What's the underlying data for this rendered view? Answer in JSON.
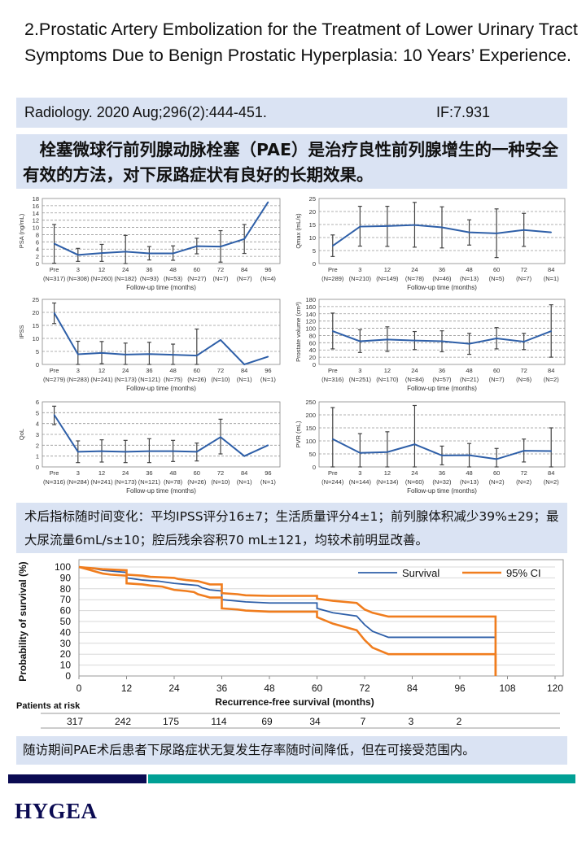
{
  "title": "2.Prostatic Artery Embolization for the Treatment of Lower Urinary Tract Symptoms Due to Benign Prostatic Hyperplasia: 10 Years’ Experience.",
  "citation": {
    "journal": "Radiology. 2020 Aug;296(2):444-451.",
    "impact_factor": "IF:7.931"
  },
  "summary": "　栓塞微球行前列腺动脉栓塞（PAE）是治疗良性前列腺增生的一种安全有效的方法，对下尿路症状有良好的长期效果。",
  "results_text": "术后指标随时间变化：平均IPSS评分16±7；生活质量评分4±1；前列腺体积减少39%±29；最大尿流量6mL/s±10；腔后残余容积70 mL±121，均较术前明显改善。",
  "conclusion_text": "随访期间PAE术后患者下尿路症状无复发生存率随时间降低，但在可接受范围内。",
  "logo": "HYGEA",
  "colors": {
    "band": "#dae3f3",
    "line": "#2e5fa8",
    "ci": "#f07d1e",
    "navy": "#0b0b52",
    "teal": "#00a095"
  },
  "chart_data": [
    {
      "type": "line",
      "ylabel": "PSA (ng/mL)",
      "xlabel": "Follow-up time (months)",
      "ylim": [
        0,
        18
      ],
      "ystep": 2,
      "grid": true,
      "categories": [
        "Pre",
        "3",
        "12",
        "24",
        "36",
        "48",
        "60",
        "72",
        "84",
        "96"
      ],
      "n": [
        "(N=317)",
        "(N=308)",
        "(N=260)",
        "(N=182)",
        "(N=93)",
        "(N=53)",
        "(N=27)",
        "(N=7)",
        "(N=7)",
        "(N=4)"
      ],
      "values": [
        5.5,
        2.4,
        2.9,
        3.3,
        2.8,
        2.8,
        4.8,
        4.7,
        6.8,
        17
      ],
      "error": [
        [
          0.1,
          10.8
        ],
        [
          0.6,
          4.2
        ],
        [
          0.6,
          5.3
        ],
        [
          0,
          7.8
        ],
        [
          1,
          4.7
        ],
        [
          0.9,
          4.9
        ],
        [
          2.7,
          7
        ],
        [
          0.4,
          9.1
        ],
        [
          2.8,
          10.8
        ],
        null
      ]
    },
    {
      "type": "line",
      "ylabel": "Qmax (mL/s)",
      "xlabel": "Follow-up time (months)",
      "ylim": [
        0,
        25
      ],
      "ystep": 5,
      "grid": true,
      "categories": [
        "Pre",
        "3",
        "12",
        "24",
        "36",
        "48",
        "60",
        "72",
        "84"
      ],
      "n": [
        "(N=289)",
        "(N=210)",
        "(N=149)",
        "(N=78)",
        "(N=46)",
        "(N=13)",
        "(N=5)",
        "(N=7)",
        "(N=1)"
      ],
      "values": [
        6.8,
        14.2,
        14.4,
        14.8,
        13.9,
        12,
        11.6,
        12.9,
        12
      ],
      "error": [
        [
          2.7,
          11
        ],
        [
          6.7,
          22
        ],
        [
          6.6,
          22
        ],
        [
          6.3,
          23.5
        ],
        [
          6,
          21.8
        ],
        [
          7.1,
          16.8
        ],
        [
          2.3,
          21
        ],
        [
          6.6,
          19.3
        ],
        null
      ]
    },
    {
      "type": "line",
      "ylabel": "IPSS",
      "xlabel": "Follow-up time (months)",
      "ylim": [
        0,
        25
      ],
      "ystep": 5,
      "grid": true,
      "categories": [
        "Pre",
        "3",
        "12",
        "24",
        "36",
        "48",
        "60",
        "72",
        "84",
        "96"
      ],
      "n": [
        "(N=279)",
        "(N=283)",
        "(N=241)",
        "(N=173)",
        "(N=121)",
        "(N=75)",
        "(N=26)",
        "(N=10)",
        "(N=1)",
        "(N=1)"
      ],
      "values": [
        19.8,
        3.9,
        4.4,
        3.8,
        4.0,
        3.7,
        3.4,
        9.4,
        0,
        3
      ],
      "error": [
        [
          15.7,
          23.6
        ],
        [
          0,
          8.9
        ],
        [
          0.3,
          8.8
        ],
        [
          0,
          8.2
        ],
        [
          0,
          8.5
        ],
        [
          0,
          7.8
        ],
        [
          0,
          13.6
        ],
        null,
        null,
        null
      ]
    },
    {
      "type": "line",
      "ylabel": "Prostate volume (cm³)",
      "xlabel": "Follow-up time (months)",
      "ylim": [
        0,
        180
      ],
      "ystep": 20,
      "grid": true,
      "categories": [
        "Pre",
        "3",
        "12",
        "24",
        "36",
        "48",
        "60",
        "72",
        "84"
      ],
      "n": [
        "(N=316)",
        "(N=251)",
        "(N=170)",
        "(N=84)",
        "(N=57)",
        "(N=21)",
        "(N=7)",
        "(N=6)",
        "(N=2)"
      ],
      "values": [
        92,
        64,
        69,
        66,
        64,
        57,
        72,
        63,
        92
      ],
      "error": [
        [
          43,
          142
        ],
        [
          33,
          96
        ],
        [
          36,
          104
        ],
        [
          41,
          91
        ],
        [
          35,
          93
        ],
        [
          28,
          86
        ],
        [
          43,
          102
        ],
        [
          41,
          86
        ],
        [
          20,
          165
        ]
      ]
    },
    {
      "type": "line",
      "ylabel": "QoL",
      "xlabel": "Follow-up time (months)",
      "ylim": [
        0,
        6
      ],
      "ystep": 1,
      "grid": true,
      "categories": [
        "Pre",
        "3",
        "12",
        "24",
        "36",
        "48",
        "60",
        "72",
        "84",
        "96"
      ],
      "n": [
        "(N=316)",
        "(N=284)",
        "(N=241)",
        "(N=173)",
        "(N=121)",
        "(N=78)",
        "(N=26)",
        "(N=10)",
        "(N=1)",
        "(N=1)"
      ],
      "values": [
        4.8,
        1.4,
        1.45,
        1.4,
        1.45,
        1.45,
        1.4,
        2.75,
        1,
        2
      ],
      "error": [
        [
          3.9,
          5.6
        ],
        [
          0.4,
          2.4
        ],
        [
          0.45,
          2.5
        ],
        [
          0.4,
          2.45
        ],
        [
          0.4,
          2.6
        ],
        [
          0.5,
          2.45
        ],
        [
          0.55,
          2.2
        ],
        [
          1.2,
          4.4
        ],
        null,
        null
      ]
    },
    {
      "type": "line",
      "ylabel": "PVR (mL)",
      "xlabel": "Follow-up time (months)",
      "ylim": [
        0,
        250
      ],
      "ystep": 50,
      "grid": true,
      "categories": [
        "Pre",
        "3",
        "12",
        "24",
        "36",
        "48",
        "60",
        "72",
        "84"
      ],
      "n": [
        "(N=244)",
        "(N=144)",
        "(N=134)",
        "(N=60)",
        "(N=32)",
        "(N=13)",
        "(N=2)",
        "(N=2)",
        "(N=2)"
      ],
      "values": [
        107,
        54,
        57,
        87,
        44,
        45,
        30,
        62,
        61
      ],
      "error": [
        [
          0,
          228
        ],
        [
          0,
          128
        ],
        [
          0,
          135
        ],
        [
          0,
          236
        ],
        [
          8,
          80
        ],
        [
          0,
          90
        ],
        [
          0,
          71
        ],
        [
          19,
          107
        ],
        [
          0,
          150
        ]
      ]
    },
    {
      "type": "line",
      "subtype": "kaplan-meier step",
      "ylabel": "Probability of survival (%)",
      "xlabel": "Recurrence-free survival (months)",
      "xlim": [
        0,
        120
      ],
      "xstep": 12,
      "ylim": [
        0,
        100
      ],
      "ystep": 10,
      "grid": true,
      "legend": "top-right",
      "series": [
        {
          "name": "Survival",
          "color": "#2e5fa8",
          "points": [
            [
              0,
              100
            ],
            [
              3,
              99
            ],
            [
              6,
              97
            ],
            [
              9,
              96
            ],
            [
              12,
              95
            ],
            [
              12,
              90
            ],
            [
              16,
              88
            ],
            [
              20,
              87
            ],
            [
              24,
              85
            ],
            [
              27,
              84
            ],
            [
              30,
              83
            ],
            [
              31,
              81
            ],
            [
              33,
              79
            ],
            [
              36,
              78
            ],
            [
              36,
              70
            ],
            [
              39,
              69
            ],
            [
              42,
              68
            ],
            [
              48,
              67
            ],
            [
              60,
              67
            ],
            [
              60,
              62
            ],
            [
              64,
              58
            ],
            [
              70,
              55
            ],
            [
              72,
              47
            ],
            [
              74,
              41
            ],
            [
              78,
              35.5
            ],
            [
              105,
              35.5
            ],
            [
              105,
              0
            ]
          ]
        },
        {
          "name": "95% CI",
          "color": "#f07d1e",
          "points": [
            [
              0,
              100
            ],
            [
              6,
              98
            ],
            [
              12,
              97
            ],
            [
              12,
              93
            ],
            [
              16,
              92
            ],
            [
              18,
              91
            ],
            [
              24,
              90
            ],
            [
              25,
              89
            ],
            [
              27,
              88
            ],
            [
              30,
              87
            ],
            [
              31,
              86
            ],
            [
              33,
              84
            ],
            [
              36,
              84
            ],
            [
              36,
              76
            ],
            [
              40,
              75
            ],
            [
              42,
              74
            ],
            [
              48,
              73.5
            ],
            [
              60,
              73.5
            ],
            [
              60,
              71
            ],
            [
              64,
              69
            ],
            [
              70,
              67
            ],
            [
              72,
              61
            ],
            [
              74,
              58
            ],
            [
              78,
              54.5
            ],
            [
              105,
              54.5
            ],
            [
              105,
              0
            ]
          ]
        },
        {
          "name": "",
          "color": "#f07d1e",
          "points": [
            [
              0,
              100
            ],
            [
              3,
              97
            ],
            [
              5,
              95
            ],
            [
              6,
              94
            ],
            [
              8,
              93
            ],
            [
              12,
              92
            ],
            [
              12,
              85
            ],
            [
              16,
              84
            ],
            [
              18,
              83
            ],
            [
              21,
              82
            ],
            [
              24,
              79
            ],
            [
              27,
              78
            ],
            [
              29,
              77
            ],
            [
              30,
              75
            ],
            [
              32,
              73
            ],
            [
              33,
              72
            ],
            [
              36,
              72
            ],
            [
              36,
              62
            ],
            [
              40,
              61
            ],
            [
              42,
              60
            ],
            [
              48,
              59
            ],
            [
              60,
              59
            ],
            [
              60,
              54
            ],
            [
              64,
              48
            ],
            [
              70,
              42
            ],
            [
              72,
              33
            ],
            [
              74,
              26
            ],
            [
              78,
              20
            ],
            [
              105,
              20
            ],
            [
              105,
              0
            ]
          ]
        }
      ],
      "risk_table": {
        "label": "Patients at risk",
        "values": [
          "317",
          "242",
          "175",
          "114",
          "69",
          "34",
          "7",
          "3",
          "2"
        ]
      }
    }
  ]
}
